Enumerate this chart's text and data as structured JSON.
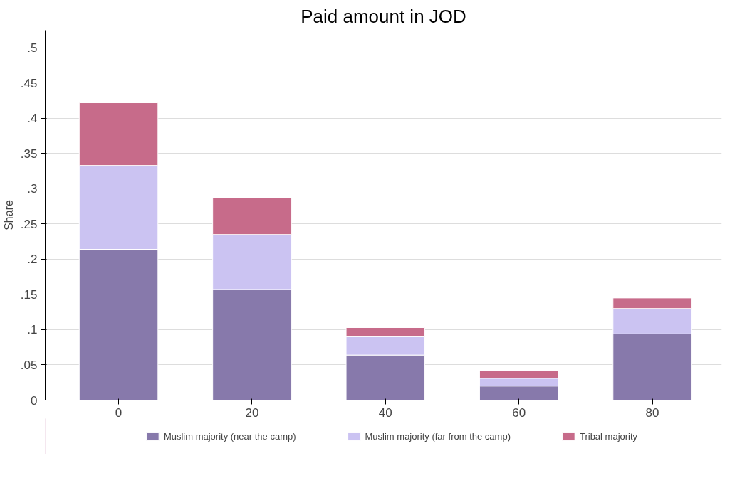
{
  "chart_data": {
    "type": "bar",
    "title": "Paid amount in JOD",
    "ylabel": "Share",
    "categories": [
      "0",
      "20",
      "40",
      "60",
      "80"
    ],
    "stacked": true,
    "series": [
      {
        "name": "Muslim majority (near the camp)",
        "color": "#8779ab",
        "values": [
          0.214,
          0.157,
          0.064,
          0.02,
          0.094
        ]
      },
      {
        "name": "Muslim majority (far from the camp)",
        "color": "#cbc3f2",
        "values": [
          0.119,
          0.078,
          0.026,
          0.011,
          0.036
        ]
      },
      {
        "name": "Tribal majority",
        "color": "#c76b8a",
        "values": [
          0.089,
          0.052,
          0.013,
          0.011,
          0.015
        ]
      }
    ],
    "ylim": [
      0,
      0.525
    ],
    "yticks": [
      0,
      {
        "value": 0.05,
        "label": ".05"
      },
      {
        "value": 0.1,
        "label": ".1"
      },
      {
        "value": 0.15,
        "label": ".15"
      },
      {
        "value": 0.2,
        "label": ".2"
      },
      {
        "value": 0.25,
        "label": ".25"
      },
      {
        "value": 0.3,
        "label": ".3"
      },
      {
        "value": 0.35,
        "label": ".35"
      },
      {
        "value": 0.4,
        "label": ".4"
      },
      {
        "value": 0.45,
        "label": ".45"
      },
      {
        "value": 0.5,
        "label": ".5"
      }
    ],
    "grid": "y",
    "legend": "bottom"
  }
}
